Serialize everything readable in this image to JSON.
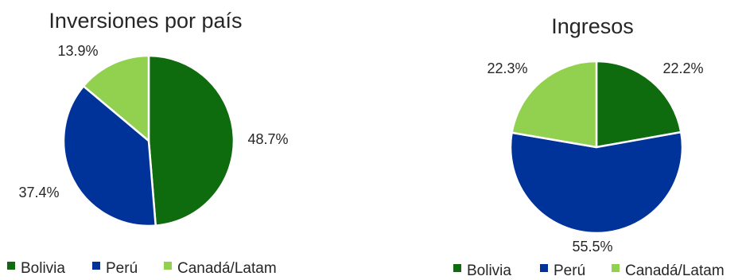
{
  "colors": {
    "Bolivia": "#0e6b0e",
    "Perú": "#003399",
    "Canadá/Latam": "#92d050"
  },
  "chart_data": [
    {
      "type": "pie",
      "title": "Inversiones por país",
      "categories": [
        "Bolivia",
        "Perú",
        "Canadá/Latam"
      ],
      "values": [
        48.7,
        37.4,
        13.9
      ],
      "labels": [
        "48.7%",
        "37.4%",
        "13.9%"
      ],
      "start_angle": 0,
      "direction": "clockwise",
      "legend": "bottom"
    },
    {
      "type": "pie",
      "title": "Ingresos",
      "categories": [
        "Bolivia",
        "Perú",
        "Canadá/Latam"
      ],
      "values": [
        22.2,
        55.5,
        22.3
      ],
      "labels": [
        "22.2%",
        "55.5%",
        "22.3%"
      ],
      "start_angle": 0,
      "direction": "clockwise",
      "legend": "bottom"
    }
  ]
}
